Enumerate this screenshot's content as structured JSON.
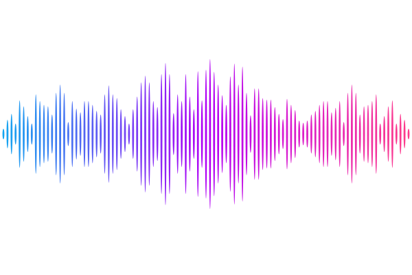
{
  "waveform": {
    "amplitude_unit": "percent of peak",
    "amplitudes": [
      7,
      19,
      27,
      14,
      45,
      37,
      24,
      14,
      53,
      44,
      39,
      37,
      26,
      55,
      66,
      55,
      16,
      44,
      34,
      29,
      44,
      44,
      39,
      31,
      26,
      53,
      65,
      53,
      48,
      33,
      24,
      14,
      33,
      50,
      69,
      78,
      69,
      44,
      36,
      80,
      95,
      80,
      28,
      53,
      44,
      80,
      50,
      33,
      84,
      45,
      86,
      100,
      83,
      66,
      52,
      39,
      77,
      94,
      66,
      90,
      55,
      25,
      61,
      61,
      48,
      46,
      46,
      36,
      27,
      20,
      47,
      39,
      32,
      18,
      15,
      18,
      26,
      31,
      39,
      44,
      44,
      29,
      35,
      44,
      16,
      55,
      66,
      55,
      26,
      37,
      39,
      44,
      53,
      14,
      24,
      37,
      45,
      14,
      27,
      19,
      7
    ],
    "gradient_colors": [
      "#12a8f0",
      "#7b3cf5",
      "#b000f5",
      "#d81ad0",
      "#ff3d88"
    ]
  }
}
